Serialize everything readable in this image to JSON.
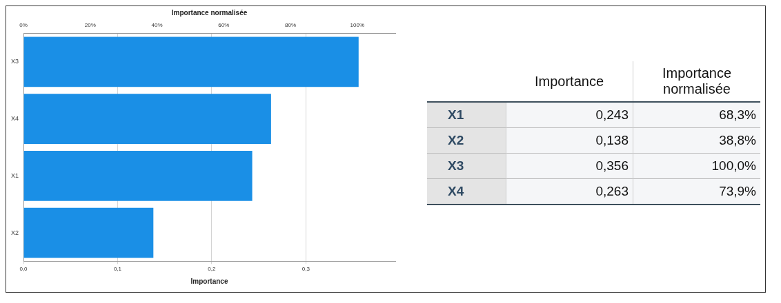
{
  "chart_data": [
    {
      "type": "bar",
      "orientation": "horizontal",
      "xlabel": "Importance",
      "x2label": "Importance normalisée",
      "categories": [
        "X3",
        "X4",
        "X1",
        "X2"
      ],
      "values": [
        0.356,
        0.263,
        0.243,
        0.138
      ],
      "color": "#1a8fe6",
      "xlim": [
        0,
        0.395
      ],
      "xticks": [
        {
          "value": 0,
          "label": "0,0"
        },
        {
          "value": 0.1,
          "label": "0,1"
        },
        {
          "value": 0.2,
          "label": "0,2"
        },
        {
          "value": 0.3,
          "label": "0,3"
        }
      ],
      "x2lim": [
        0,
        111.4
      ],
      "x2ticks": [
        {
          "value": 0,
          "label": "0%"
        },
        {
          "value": 20,
          "label": "20%"
        },
        {
          "value": 40,
          "label": "40%"
        },
        {
          "value": 60,
          "label": "60%"
        },
        {
          "value": 80,
          "label": "80%"
        },
        {
          "value": 100,
          "label": "100%"
        }
      ],
      "grid": "x",
      "legend": false
    },
    {
      "type": "other",
      "categories": [
        "X1",
        "X2",
        "X3",
        "X4"
      ],
      "series": [
        {
          "name": "Importance",
          "values": [
            0.243,
            0.138,
            0.356,
            0.263
          ],
          "value_labels": [
            "0,243",
            "0,138",
            "0,356",
            "0,263"
          ]
        },
        {
          "name": "Importance normalisée",
          "values": [
            68.3,
            38.8,
            100.0,
            73.9
          ],
          "value_labels": [
            "68,3%",
            "38,8%",
            "100,0%",
            "73,9%"
          ]
        }
      ]
    }
  ]
}
